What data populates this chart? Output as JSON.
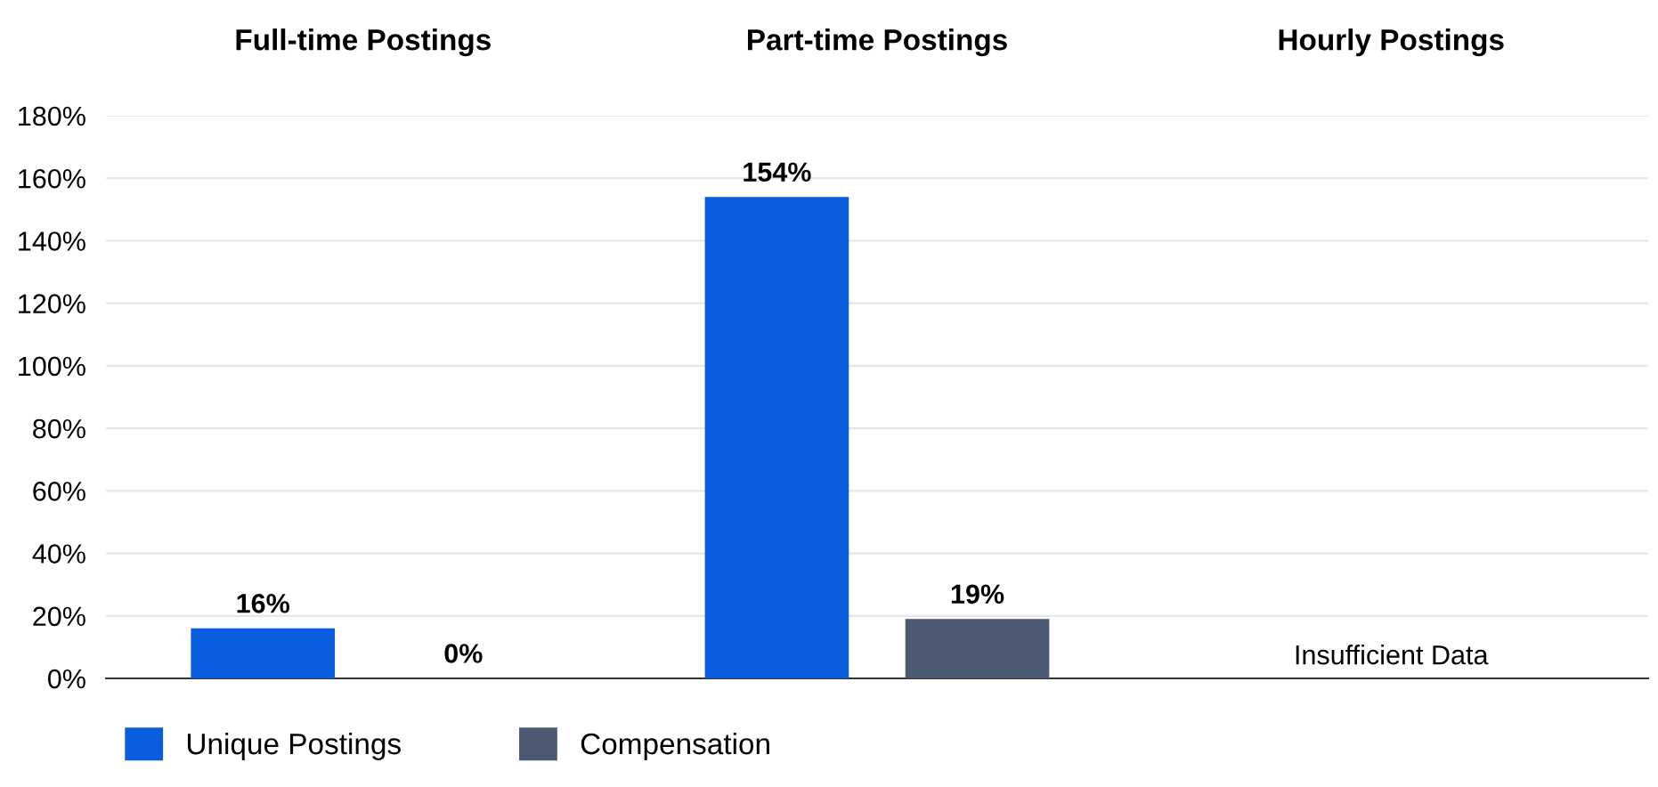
{
  "chart_data": {
    "type": "bar",
    "categories": [
      "Full-time Postings",
      "Part-time Postings",
      "Hourly Postings"
    ],
    "series": [
      {
        "name": "Unique Postings",
        "color": "#0a5ddc",
        "values": [
          16,
          154,
          null
        ]
      },
      {
        "name": "Compensation",
        "color": "#4b5a72",
        "values": [
          0,
          19,
          null
        ]
      }
    ],
    "ylim": [
      0,
      180
    ],
    "yticks": [
      {
        "value": 0,
        "label": "0%"
      },
      {
        "value": 20,
        "label": "20%"
      },
      {
        "value": 40,
        "label": "40%"
      },
      {
        "value": 60,
        "label": "60%"
      },
      {
        "value": 80,
        "label": "80%"
      },
      {
        "value": 100,
        "label": "100%"
      },
      {
        "value": 120,
        "label": "120%"
      },
      {
        "value": 140,
        "label": "140%"
      },
      {
        "value": 160,
        "label": "160%"
      },
      {
        "value": 180,
        "label": "180%"
      }
    ],
    "value_labels": [
      [
        "16%",
        "154%",
        null
      ],
      [
        "0%",
        "19%",
        null
      ]
    ],
    "annotations": [
      "Insufficient Data"
    ],
    "grid": "y",
    "legend": "bottom left"
  }
}
